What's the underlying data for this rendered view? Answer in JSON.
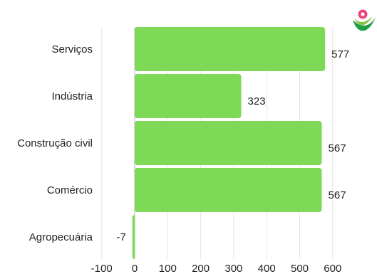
{
  "chart_data": {
    "type": "bar",
    "orientation": "horizontal",
    "categories": [
      "Serviços",
      "Indústria",
      "Construção civil",
      "Comércio",
      "Agropecuária"
    ],
    "values": [
      577,
      323,
      567,
      567,
      -7
    ],
    "data_labels": [
      "577",
      "323",
      "567",
      "567",
      "-7"
    ],
    "xlim": [
      -100,
      600
    ],
    "x_ticks": [
      -100,
      0,
      100,
      200,
      300,
      400,
      500,
      600
    ],
    "x_tick_labels": [
      "-100",
      "0",
      "100",
      "200",
      "300",
      "400",
      "500",
      "600"
    ],
    "title": "",
    "xlabel": "",
    "ylabel": "",
    "grid": "vertical",
    "legend": "none",
    "bar_color": "#7ed957",
    "logo_colors": [
      "#e8487c",
      "#8ac43f",
      "#1f9e48"
    ]
  }
}
